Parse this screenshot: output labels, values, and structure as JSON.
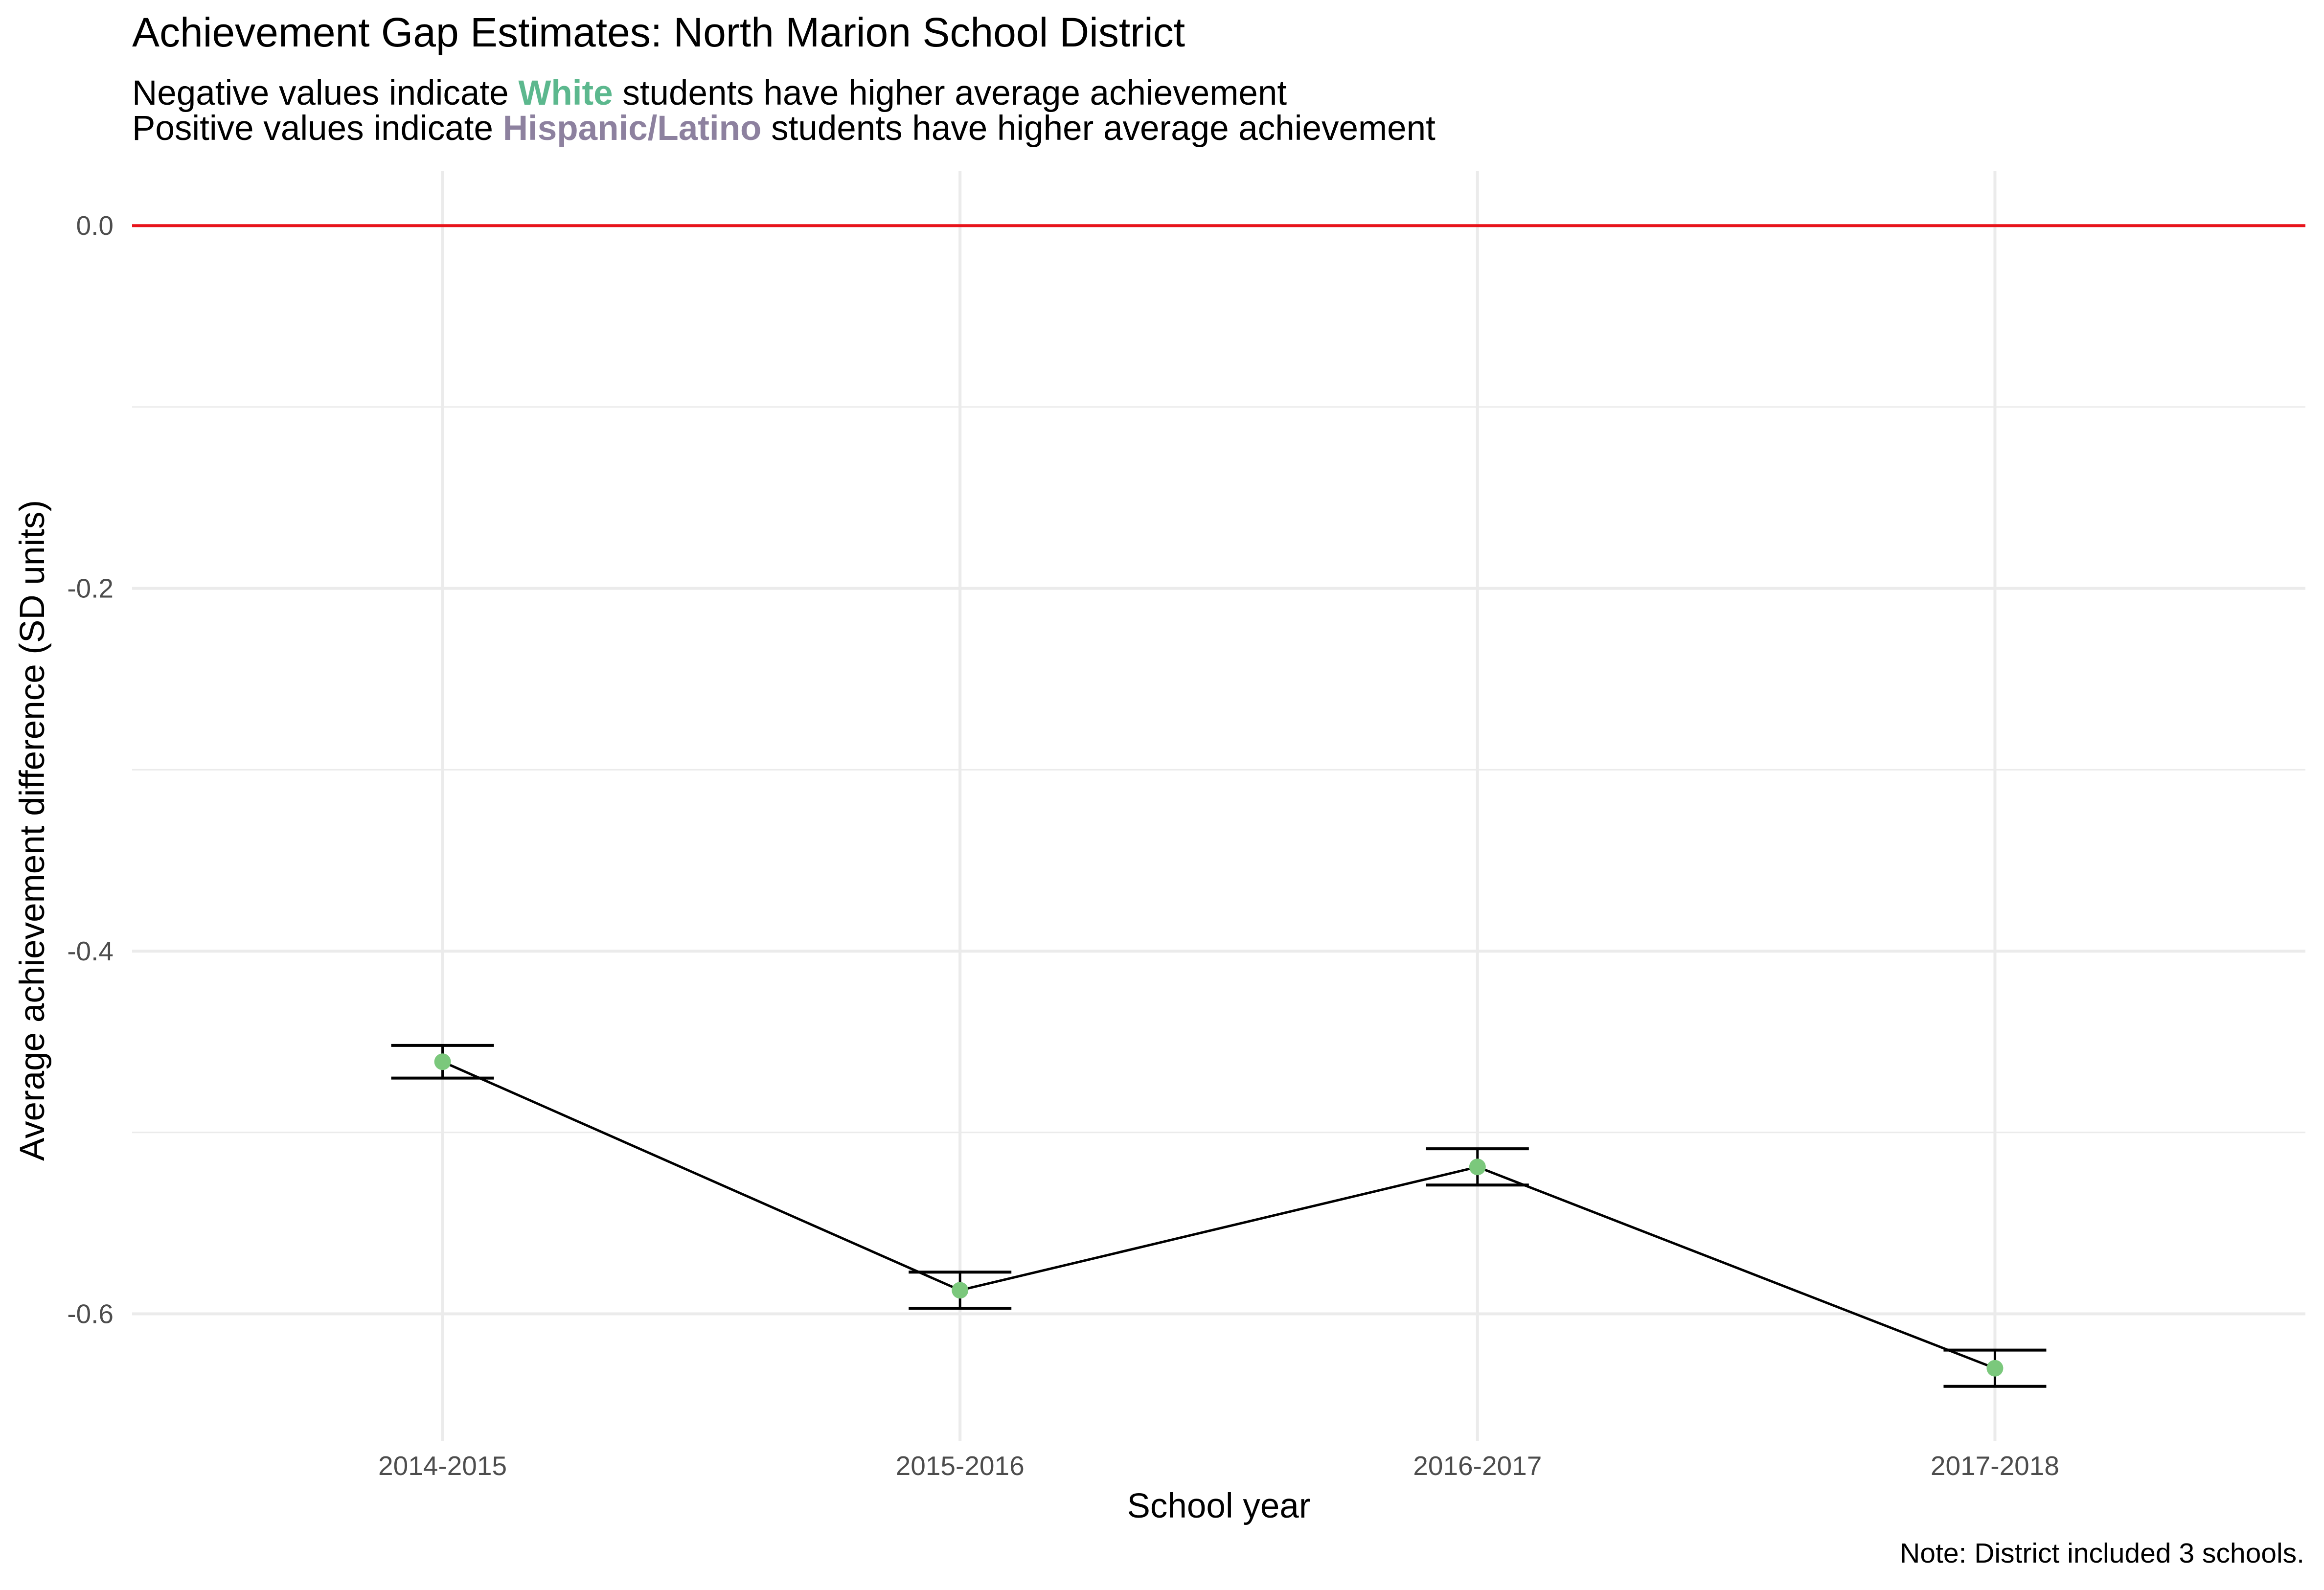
{
  "chart_data": {
    "type": "line",
    "title": "Achievement Gap Estimates: North Marion School District",
    "subtitle_lines": [
      {
        "before": "Negative values indicate ",
        "highlight": "White",
        "after": " students have higher average achievement"
      },
      {
        "before": "Positive values indicate ",
        "highlight": "Hispanic/Latino",
        "after": " students have higher average achievement"
      }
    ],
    "xlabel": "School year",
    "ylabel": "Average achievement difference (SD units)",
    "categories": [
      "2014-2015",
      "2015-2016",
      "2016-2017",
      "2017-2018"
    ],
    "values": [
      -0.461,
      -0.587,
      -0.519,
      -0.63
    ],
    "error_low": [
      -0.47,
      -0.597,
      -0.529,
      -0.64
    ],
    "error_high": [
      -0.452,
      -0.577,
      -0.509,
      -0.62
    ],
    "ylim": [
      -0.67,
      0.03
    ],
    "yticks": [
      "0.0",
      "-0.2",
      "-0.4",
      "-0.6"
    ],
    "ytick_values": [
      0.0,
      -0.2,
      -0.4,
      -0.6
    ],
    "reference_line": 0.0,
    "grid": true,
    "colors": {
      "reference_line": "#e8131b",
      "point": "#7bc87c",
      "white_highlight": "#5cb88e",
      "hispanic_highlight": "#8d819f",
      "grid": "#ebebeb"
    },
    "note": "Note: District included 3 schools."
  }
}
